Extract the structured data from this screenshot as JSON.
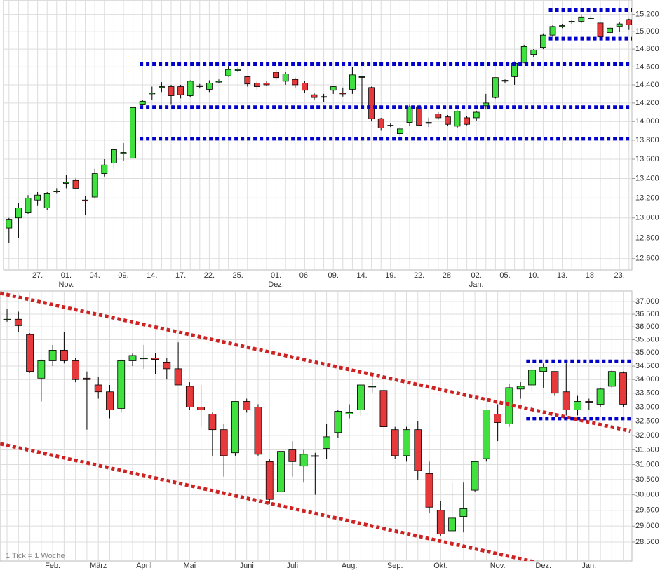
{
  "chart_data": [
    {
      "type": "candlestick",
      "log_scale": true,
      "grid": true,
      "up_color": "#3fe03f",
      "down_color": "#e5393b",
      "level_color": "#0000cc",
      "categories": [
        null,
        null,
        null,
        "27.",
        null,
        null,
        "01.",
        null,
        null,
        "04.",
        null,
        null,
        "09.",
        null,
        null,
        "14.",
        null,
        null,
        "17.",
        null,
        null,
        "22.",
        null,
        null,
        "25.",
        null,
        null,
        null,
        "01.",
        null,
        null,
        "06.",
        null,
        null,
        "09.",
        null,
        null,
        "14.",
        null,
        null,
        "19.",
        null,
        null,
        "22.",
        null,
        null,
        "28.",
        null,
        null,
        "02.",
        null,
        null,
        "05.",
        null,
        null,
        "10.",
        null,
        null,
        "13.",
        null,
        null,
        "18.",
        null,
        null,
        "23.",
        null
      ],
      "months": [
        null,
        null,
        null,
        null,
        null,
        null,
        "Nov.",
        null,
        null,
        null,
        null,
        null,
        null,
        null,
        null,
        null,
        null,
        null,
        null,
        null,
        null,
        null,
        null,
        null,
        null,
        null,
        null,
        null,
        "Dez.",
        null,
        null,
        null,
        null,
        null,
        null,
        null,
        null,
        null,
        null,
        null,
        null,
        null,
        null,
        null,
        null,
        null,
        null,
        null,
        null,
        "Jan.",
        null,
        null,
        null,
        null,
        null,
        null,
        null,
        null,
        null,
        null,
        null,
        null,
        null,
        null,
        null,
        null
      ],
      "open": [
        12900,
        13000,
        13050,
        13180,
        13100,
        13270,
        13350,
        13380,
        13180,
        13210,
        13450,
        13560,
        13660,
        13610,
        14180,
        14300,
        14370,
        14380,
        14380,
        14280,
        14390,
        14350,
        14430,
        14500,
        14560,
        14490,
        14420,
        14420,
        14540,
        14440,
        14460,
        14420,
        14290,
        14270,
        14340,
        14310,
        14350,
        14490,
        14370,
        14030,
        13960,
        13870,
        13990,
        14160,
        13980,
        14080,
        14050,
        13950,
        14040,
        14040,
        14170,
        14260,
        14440,
        14490,
        14650,
        14740,
        14820,
        14960,
        15060,
        15110,
        15120,
        15160,
        15100,
        14990,
        15060,
        15140
      ],
      "high": [
        13000,
        13150,
        13230,
        13260,
        13260,
        13300,
        13440,
        13400,
        13220,
        13500,
        13600,
        13700,
        13770,
        14150,
        14230,
        14380,
        14430,
        14400,
        14400,
        14450,
        14410,
        14450,
        14460,
        14610,
        14590,
        14500,
        14440,
        14440,
        14560,
        14540,
        14480,
        14440,
        14310,
        14300,
        14390,
        14370,
        14600,
        14500,
        14380,
        14040,
        13980,
        13940,
        14180,
        14180,
        14040,
        14100,
        14070,
        14120,
        14060,
        14110,
        14300,
        14480,
        14460,
        14660,
        14850,
        14800,
        14980,
        15080,
        15090,
        15140,
        15200,
        15180,
        15100,
        15050,
        15110,
        15150
      ],
      "low": [
        12750,
        12800,
        13040,
        13120,
        13080,
        13250,
        13300,
        13290,
        13030,
        13200,
        13420,
        13500,
        13580,
        13610,
        14150,
        14230,
        14320,
        14180,
        14250,
        14260,
        14360,
        14320,
        14420,
        14490,
        14540,
        14380,
        14350,
        14390,
        14450,
        14400,
        14360,
        14310,
        14230,
        14210,
        14300,
        14270,
        14300,
        14170,
        14000,
        13900,
        13940,
        13840,
        13950,
        13950,
        13940,
        14020,
        13950,
        13930,
        13960,
        14010,
        14130,
        14250,
        14420,
        14400,
        14640,
        14710,
        14800,
        14940,
        15040,
        15090,
        15100,
        15150,
        14910,
        14980,
        15000,
        15020
      ],
      "close": [
        12980,
        13100,
        13200,
        13230,
        13250,
        13270,
        13360,
        13300,
        13170,
        13450,
        13540,
        13700,
        13670,
        14150,
        14220,
        14310,
        14380,
        14280,
        14290,
        14440,
        14380,
        14420,
        14440,
        14570,
        14570,
        14410,
        14380,
        14400,
        14480,
        14520,
        14400,
        14340,
        14260,
        14270,
        14380,
        14300,
        14510,
        14490,
        14030,
        13930,
        13960,
        13920,
        14160,
        13960,
        13990,
        14040,
        13970,
        14110,
        13970,
        14100,
        14200,
        14480,
        14450,
        14640,
        14830,
        14790,
        14960,
        15060,
        15070,
        15120,
        15170,
        15160,
        14940,
        15040,
        15090,
        15080
      ],
      "ylim": [
        12490,
        15370
      ],
      "yticks": [
        {
          "value": 12600,
          "label": "12.600"
        },
        {
          "value": 12800,
          "label": "12.800"
        },
        {
          "value": 13000,
          "label": "13.000"
        },
        {
          "value": 13200,
          "label": "13.200"
        },
        {
          "value": 13400,
          "label": "13.400"
        },
        {
          "value": 13600,
          "label": "13.600"
        },
        {
          "value": 13800,
          "label": "13.800"
        },
        {
          "value": 14000,
          "label": "14.000"
        },
        {
          "value": 14200,
          "label": "14.200"
        },
        {
          "value": 14400,
          "label": "14.400"
        },
        {
          "value": 14600,
          "label": "14.600"
        },
        {
          "value": 14800,
          "label": "14.800"
        },
        {
          "value": 15000,
          "label": "15.000"
        },
        {
          "value": 15200,
          "label": "15.200"
        }
      ],
      "levels": [
        {
          "value": 15250,
          "x": [
            56.6,
            65.6
          ]
        },
        {
          "value": 14920,
          "x": [
            56.6,
            65.6
          ]
        },
        {
          "value": 14630,
          "x": [
            13.7,
            65.6
          ]
        },
        {
          "value": 14155,
          "x": [
            13.7,
            65.6
          ]
        },
        {
          "value": 13815,
          "x": [
            13.7,
            65.6
          ]
        }
      ]
    },
    {
      "type": "candlestick",
      "log_scale": true,
      "grid": true,
      "up_color": "#3fe03f",
      "down_color": "#e5393b",
      "level_color": "#0000cc",
      "trend_color": "#cc2222",
      "note": "1 Tick = 1 Woche",
      "categories": [
        null,
        null,
        null,
        null,
        "Feb.",
        null,
        null,
        null,
        "März",
        null,
        null,
        null,
        "April",
        null,
        null,
        null,
        "Mai",
        null,
        null,
        null,
        null,
        "Juni",
        null,
        null,
        null,
        "Juli",
        null,
        null,
        null,
        null,
        "Aug.",
        null,
        null,
        null,
        "Sep.",
        null,
        null,
        null,
        "Okt.",
        null,
        null,
        null,
        null,
        "Nov.",
        null,
        null,
        null,
        "Dez.",
        null,
        null,
        null,
        "Jan.",
        null,
        null,
        null
      ],
      "open": [
        36300,
        36300,
        35700,
        34050,
        34700,
        35100,
        34700,
        34050,
        33800,
        33550,
        32950,
        34700,
        34800,
        34800,
        34650,
        34400,
        33750,
        33000,
        32750,
        32200,
        31400,
        33200,
        33000,
        31100,
        30100,
        31500,
        30950,
        31300,
        31550,
        32100,
        32750,
        32900,
        33750,
        33600,
        32200,
        31300,
        32200,
        30700,
        29500,
        28850,
        29300,
        30150,
        31200,
        32750,
        32400,
        33650,
        33800,
        34300,
        34300,
        33550,
        32900,
        33200,
        33100,
        33750,
        34250
      ],
      "high": [
        36700,
        36600,
        35750,
        34750,
        35300,
        35800,
        34800,
        34300,
        34100,
        33800,
        34750,
        35000,
        35300,
        35000,
        34800,
        35400,
        33900,
        33800,
        32800,
        32400,
        33200,
        33300,
        33100,
        31200,
        31500,
        31800,
        31500,
        31400,
        32400,
        32900,
        33100,
        33800,
        34200,
        33600,
        32300,
        32300,
        32500,
        31100,
        29800,
        30400,
        30400,
        31100,
        32900,
        33100,
        33850,
        33900,
        34500,
        34600,
        34300,
        34600,
        33400,
        33300,
        33700,
        34350,
        34300
      ],
      "low": [
        36200,
        35800,
        34250,
        33200,
        34500,
        34600,
        33900,
        32200,
        33300,
        32600,
        32800,
        34500,
        34400,
        34200,
        34000,
        33800,
        32900,
        32300,
        31300,
        30600,
        31300,
        32800,
        31300,
        29700,
        30000,
        30600,
        30400,
        30000,
        31200,
        31900,
        32600,
        32700,
        33500,
        32300,
        31200,
        31100,
        30500,
        29400,
        28700,
        28800,
        28800,
        30100,
        31100,
        31800,
        32300,
        33300,
        33600,
        33700,
        33400,
        32700,
        32700,
        32900,
        33000,
        33700,
        33000
      ],
      "close": [
        36300,
        36050,
        34300,
        34700,
        35100,
        34700,
        34000,
        34000,
        33550,
        32900,
        34700,
        34900,
        34800,
        34750,
        34400,
        33800,
        33000,
        32900,
        32200,
        31300,
        33200,
        32900,
        31350,
        29850,
        31450,
        31100,
        31350,
        31300,
        31950,
        32850,
        32800,
        33800,
        33750,
        32300,
        31300,
        32200,
        30800,
        29600,
        28750,
        29250,
        29550,
        31100,
        32900,
        32450,
        33700,
        33750,
        34350,
        34450,
        33500,
        32900,
        33200,
        33150,
        33650,
        34300,
        33100
      ],
      "ylim": [
        27920,
        37430
      ],
      "yticks": [
        {
          "value": 28500,
          "label": "28.500"
        },
        {
          "value": 29000,
          "label": "29.000"
        },
        {
          "value": 29500,
          "label": "29.500"
        },
        {
          "value": 30000,
          "label": "30.000"
        },
        {
          "value": 30500,
          "label": "30.500"
        },
        {
          "value": 31000,
          "label": "31.000"
        },
        {
          "value": 31500,
          "label": "31.500"
        },
        {
          "value": 32000,
          "label": "32.000"
        },
        {
          "value": 32500,
          "label": "32.500"
        },
        {
          "value": 33000,
          "label": "33.000"
        },
        {
          "value": 33500,
          "label": "33.500"
        },
        {
          "value": 34000,
          "label": "34.000"
        },
        {
          "value": 34500,
          "label": "34.500"
        },
        {
          "value": 35000,
          "label": "35.000"
        },
        {
          "value": 35500,
          "label": "35.500"
        },
        {
          "value": 36000,
          "label": "36.000"
        },
        {
          "value": 36500,
          "label": "36.500"
        },
        {
          "value": 37000,
          "label": "37.000"
        }
      ],
      "levels": [
        {
          "value": 34680,
          "x": [
            45.5,
            54.7
          ]
        },
        {
          "value": 32590,
          "x": [
            45.5,
            54.7
          ]
        }
      ],
      "trendlines": [
        {
          "values": [
            37345,
            32150
          ],
          "x": [
            -0.6,
            54.6
          ]
        },
        {
          "values": [
            31710,
            27620
          ],
          "x": [
            -0.6,
            49.8
          ]
        }
      ]
    }
  ]
}
